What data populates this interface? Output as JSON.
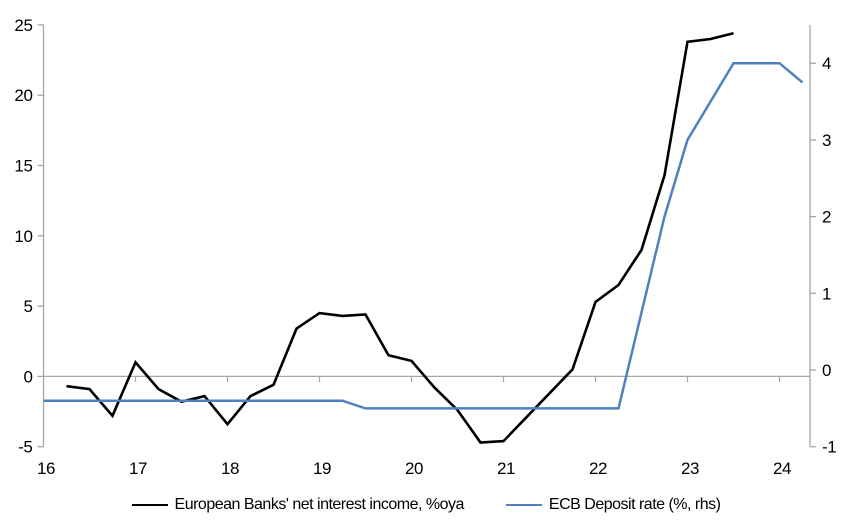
{
  "chart_data": {
    "type": "line",
    "title": "",
    "background": "#FFFFFF",
    "axis_color": "#A6A6A6",
    "gridline": {
      "at_left_value": 0,
      "color": "#A6A6A6"
    },
    "left_axis": {
      "min": -5,
      "max": 25,
      "tick_step": 5,
      "ticks": [
        -5,
        0,
        5,
        10,
        15,
        20,
        25
      ],
      "tick_labels": [
        "-5",
        "0",
        "5",
        "10",
        "15",
        "20",
        "25"
      ]
    },
    "right_axis": {
      "min": -1,
      "max": 4.5,
      "tick_step": 1,
      "ticks": [
        -1,
        0,
        1,
        2,
        3,
        4
      ],
      "tick_labels": [
        "-1",
        "0",
        "1",
        "2",
        "3",
        "4"
      ]
    },
    "x_axis": {
      "min": 16,
      "max": 24.33,
      "labels": [
        "16",
        "17",
        "18",
        "19",
        "20",
        "21",
        "22",
        "23",
        "24"
      ],
      "label_positions": [
        16,
        17,
        18,
        19,
        20,
        21,
        22,
        23,
        24
      ],
      "year_tick_positions": [
        17,
        18,
        19,
        20,
        21,
        22,
        23,
        24
      ]
    },
    "series": [
      {
        "name": "European Banks' net interest income, %oya",
        "axis": "left",
        "color": "#000000",
        "stroke_width": 2.6,
        "x": [
          16.25,
          16.5,
          16.75,
          17.0,
          17.25,
          17.5,
          17.75,
          18.0,
          18.25,
          18.5,
          18.75,
          19.0,
          19.25,
          19.5,
          19.75,
          20.0,
          20.25,
          20.5,
          20.75,
          21.0,
          21.25,
          21.5,
          21.75,
          22.0,
          22.25,
          22.5,
          22.75,
          23.0,
          23.25,
          23.5
        ],
        "values": [
          -0.7,
          -0.9,
          -2.8,
          1.0,
          -0.9,
          -1.8,
          -1.4,
          -3.4,
          -1.4,
          -0.6,
          3.4,
          4.5,
          4.3,
          4.4,
          1.5,
          1.1,
          -0.8,
          -2.4,
          -4.7,
          -4.6,
          -2.9,
          -1.2,
          0.5,
          5.3,
          6.5,
          9.0,
          14.3,
          23.8,
          24.0,
          24.4
        ]
      },
      {
        "name": "ECB Deposit rate (%, rhs)",
        "axis": "right",
        "color": "#4F81BD",
        "stroke_width": 2.5,
        "x": [
          16.0,
          16.25,
          16.5,
          16.75,
          17.0,
          17.25,
          17.5,
          17.75,
          18.0,
          18.25,
          18.5,
          18.75,
          19.0,
          19.25,
          19.5,
          19.75,
          20.0,
          20.25,
          20.5,
          20.75,
          21.0,
          21.25,
          21.5,
          21.75,
          22.0,
          22.25,
          22.5,
          22.75,
          23.0,
          23.25,
          23.5,
          23.75,
          24.0,
          24.25
        ],
        "values": [
          -0.4,
          -0.4,
          -0.4,
          -0.4,
          -0.4,
          -0.4,
          -0.4,
          -0.4,
          -0.4,
          -0.4,
          -0.4,
          -0.4,
          -0.4,
          -0.4,
          -0.5,
          -0.5,
          -0.5,
          -0.5,
          -0.5,
          -0.5,
          -0.5,
          -0.5,
          -0.5,
          -0.5,
          -0.5,
          -0.5,
          0.75,
          2.0,
          3.0,
          3.5,
          4.0,
          4.0,
          4.0,
          3.75
        ]
      }
    ],
    "legend_position": "bottom"
  }
}
